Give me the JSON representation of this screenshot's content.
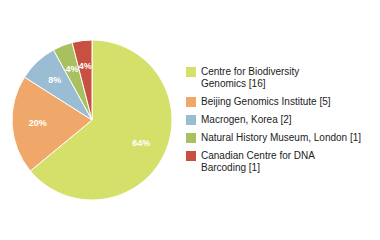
{
  "chart_data": {
    "type": "pie",
    "categories": [
      "Centre for Biodiversity\nGenomics [16]",
      "Beijing Genomics Institute [5]",
      "Macrogen, Korea [2]",
      "Natural History Museum, London [1]",
      "Canadian Centre for DNA\nBarcoding [1]"
    ],
    "values": [
      64,
      20,
      8,
      4,
      4
    ],
    "value_labels": [
      "64%",
      "20%",
      "8%",
      "4%",
      "4%"
    ],
    "colors": [
      "#d4e06a",
      "#f0a86a",
      "#9bbdd4",
      "#a8c060",
      "#c85040"
    ],
    "data_labels": true,
    "legend": "right"
  }
}
